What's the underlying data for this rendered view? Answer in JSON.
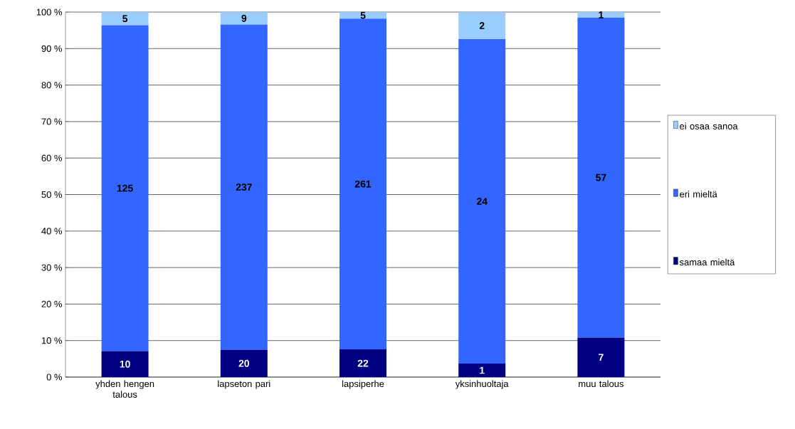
{
  "chart_data": {
    "type": "bar",
    "stacked": true,
    "categories": [
      "yhden hengen talous",
      "lapseton pari",
      "lapsiperhe",
      "yksinhuoltaja",
      "muu talous"
    ],
    "series": [
      {
        "name": "samaa mieltä",
        "color": "#000080",
        "values": [
          7.1,
          7.5,
          7.6,
          3.7,
          10.8
        ]
      },
      {
        "name": "eri mieltä",
        "color": "#3366ff",
        "values": [
          89.3,
          89.1,
          90.6,
          88.9,
          87.7
        ]
      },
      {
        "name": "ei osaa sanoa",
        "color": "#99ccff",
        "values": [
          3.6,
          3.4,
          1.8,
          7.4,
          1.5
        ]
      }
    ],
    "annotations": [
      "10",
      "20",
      "22",
      "1",
      "7",
      "125",
      "237",
      "261",
      "24",
      "57",
      "5",
      "9",
      "5",
      "2",
      "1"
    ],
    "ylim": [
      0,
      100
    ],
    "yticks": [
      {
        "value": 0,
        "label": "0 %"
      },
      {
        "value": 10,
        "label": "10 %"
      },
      {
        "value": 20,
        "label": "20 %"
      },
      {
        "value": 30,
        "label": "30 %"
      },
      {
        "value": 40,
        "label": "40 %"
      },
      {
        "value": 50,
        "label": "50 %"
      },
      {
        "value": 60,
        "label": "60 %"
      },
      {
        "value": 70,
        "label": "70 %"
      },
      {
        "value": 80,
        "label": "80 %"
      },
      {
        "value": 90,
        "label": "90 %"
      },
      {
        "value": 100,
        "label": "100 %"
      }
    ],
    "grid": "y",
    "legend": "right"
  }
}
